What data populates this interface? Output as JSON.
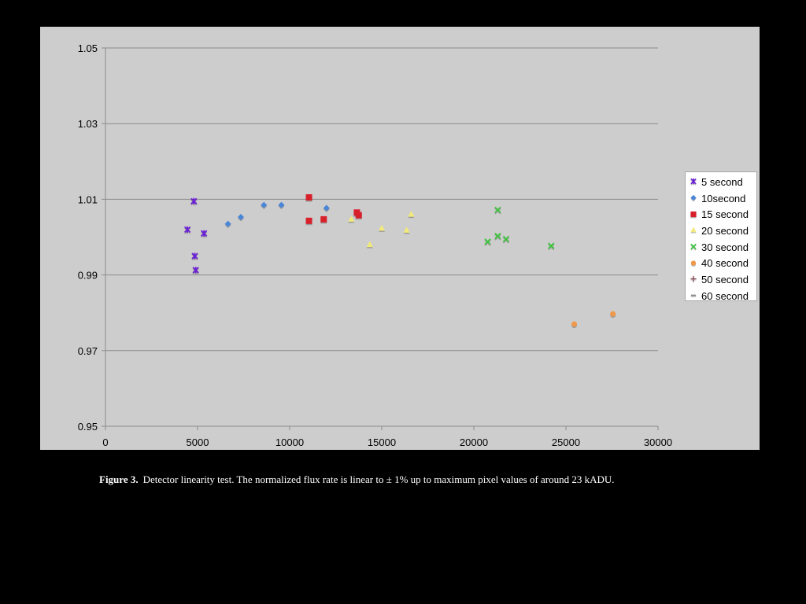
{
  "chart_data": {
    "type": "scatter",
    "title": "",
    "xlabel": "",
    "ylabel": "",
    "xlim": [
      0,
      30000
    ],
    "ylim": [
      0.95,
      1.05
    ],
    "x_ticks": [
      "0",
      "5000",
      "10000",
      "15000",
      "20000",
      "25000",
      "30000"
    ],
    "y_ticks": [
      "0.95",
      "0.97",
      "0.99",
      "1.01",
      "1.03",
      "1.05"
    ],
    "grid": "horizontal",
    "legend_position": "right",
    "series": [
      {
        "name": "5 second",
        "marker": "asterisk",
        "color": "#6a1fd6",
        "points": [
          [
            4450,
            1.002
          ],
          [
            4800,
            1.0095
          ],
          [
            4850,
            0.995
          ],
          [
            4900,
            0.9913
          ],
          [
            5350,
            1.001
          ]
        ]
      },
      {
        "name": "10second",
        "marker": "diamond",
        "color": "#4a86d8",
        "points": [
          [
            6650,
            1.0035
          ],
          [
            7350,
            1.0053
          ],
          [
            8600,
            1.0085
          ],
          [
            9550,
            1.0085
          ],
          [
            12000,
            1.0077
          ]
        ]
      },
      {
        "name": "15 second",
        "marker": "square",
        "color": "#d8202a",
        "points": [
          [
            11050,
            1.0105
          ],
          [
            11050,
            1.0043
          ],
          [
            11850,
            1.0047
          ],
          [
            13650,
            1.0065
          ],
          [
            13750,
            1.0058
          ]
        ]
      },
      {
        "name": "20 second",
        "marker": "triangle",
        "color": "#f1ea7a",
        "points": [
          [
            13350,
            1.0047
          ],
          [
            14350,
            0.998
          ],
          [
            15000,
            1.0023
          ],
          [
            16350,
            1.0018
          ],
          [
            16600,
            1.006
          ]
        ]
      },
      {
        "name": "30 second",
        "marker": "x",
        "color": "#3cc63c",
        "points": [
          [
            20750,
            0.9988
          ],
          [
            21300,
            1.0072
          ],
          [
            21300,
            1.0003
          ],
          [
            21750,
            0.9995
          ],
          [
            24200,
            0.9977
          ]
        ]
      },
      {
        "name": "40 second",
        "marker": "circle",
        "color": "#f0994c",
        "points": [
          [
            25450,
            0.977
          ],
          [
            27550,
            0.9797
          ]
        ]
      },
      {
        "name": "50 second",
        "marker": "plus",
        "color": "#8a4a5a",
        "points": []
      },
      {
        "name": "60 second",
        "marker": "dash",
        "color": "#8a8a8a",
        "points": []
      }
    ]
  },
  "caption": {
    "label": "Figure 3.",
    "text": "Detector linearity test. The normalized flux rate is linear to ± 1% up to maximum pixel values of around 23 kADU."
  }
}
